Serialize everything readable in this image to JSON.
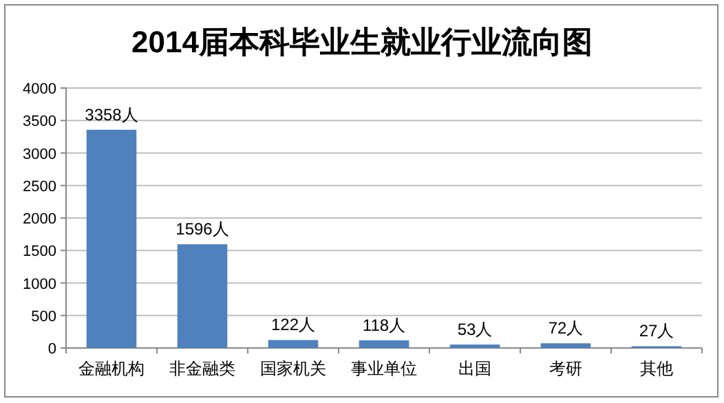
{
  "chart_data": {
    "type": "bar",
    "title": "2014届本科毕业生就业行业流向图",
    "categories": [
      "金融机构",
      "非金融类",
      "国家机关",
      "事业单位",
      "出国",
      "考研",
      "其他"
    ],
    "values": [
      3358,
      1596,
      122,
      118,
      53,
      72,
      27
    ],
    "value_labels": [
      "3358人",
      "1596人",
      "122人",
      "118人",
      "53人",
      "72人",
      "27人"
    ],
    "color": "#4f81bd",
    "ylim": [
      0,
      4000
    ],
    "yticks": [
      0,
      500,
      1000,
      1500,
      2000,
      2500,
      3000,
      3500,
      4000
    ],
    "grid": "y"
  }
}
